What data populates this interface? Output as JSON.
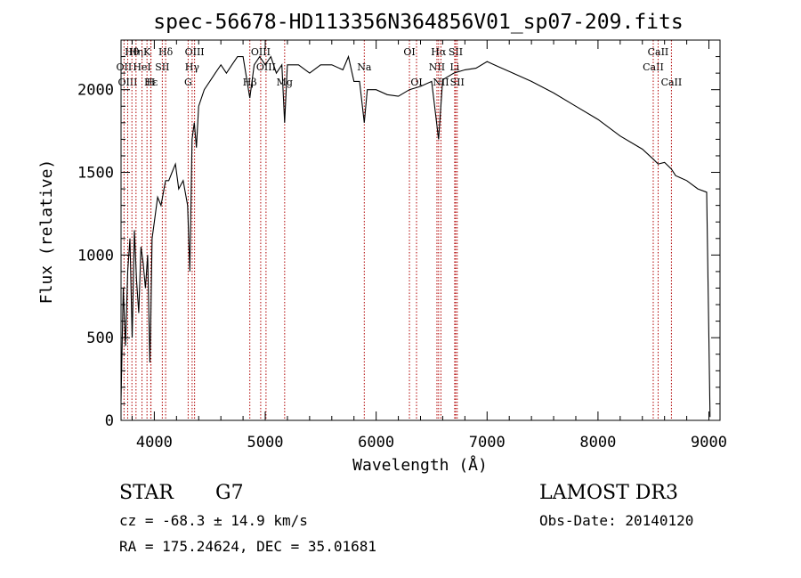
{
  "chart_data": {
    "type": "line",
    "title": "spec-56678-HD113356N364856V01_sp07-209.fits",
    "xlabel": "Wavelength (Å)",
    "ylabel": "Flux (relative)",
    "xlim": [
      3700,
      9100
    ],
    "ylim": [
      0,
      2300
    ],
    "x_ticks": [
      4000,
      5000,
      6000,
      7000,
      8000,
      9000
    ],
    "y_ticks": [
      0,
      500,
      1000,
      1500,
      2000
    ],
    "grid": false,
    "series": [
      {
        "x": [
          3700,
          3720,
          3740,
          3760,
          3780,
          3800,
          3820,
          3840,
          3860,
          3880,
          3900,
          3920,
          3940,
          3960,
          3968,
          3980,
          4000,
          4030,
          4060,
          4101,
          4130,
          4160,
          4190,
          4220,
          4260,
          4300,
          4320,
          4340,
          4360,
          4380,
          4400,
          4450,
          4500,
          4550,
          4600,
          4650,
          4700,
          4750,
          4800,
          4861,
          4900,
          4950,
          5000,
          5050,
          5100,
          5150,
          5175,
          5200,
          5300,
          5400,
          5500,
          5600,
          5700,
          5750,
          5800,
          5850,
          5893,
          5920,
          6000,
          6100,
          6200,
          6300,
          6400,
          6500,
          6563,
          6600,
          6650,
          6700,
          6800,
          6900,
          7000,
          7100,
          7200,
          7400,
          7600,
          7800,
          8000,
          8200,
          8400,
          8498,
          8542,
          8600,
          8662,
          8700,
          8800,
          8900,
          8980,
          9000,
          9010
        ],
        "y": [
          120,
          800,
          450,
          900,
          1100,
          500,
          1150,
          850,
          650,
          1050,
          950,
          800,
          1000,
          350,
          600,
          1100,
          1200,
          1350,
          1300,
          1450,
          1450,
          1500,
          1550,
          1400,
          1450,
          1300,
          900,
          1700,
          1800,
          1650,
          1900,
          2000,
          2050,
          2100,
          2150,
          2100,
          2150,
          2200,
          2200,
          1950,
          2150,
          2200,
          2150,
          2200,
          2100,
          2150,
          1800,
          2150,
          2150,
          2100,
          2150,
          2150,
          2120,
          2200,
          2050,
          2050,
          1800,
          2000,
          2000,
          1970,
          1960,
          2000,
          2020,
          2050,
          1700,
          2060,
          2080,
          2100,
          2120,
          2130,
          2170,
          2140,
          2110,
          2050,
          1980,
          1900,
          1820,
          1720,
          1640,
          1580,
          1550,
          1560,
          1520,
          1480,
          1450,
          1400,
          1380,
          500,
          20
        ]
      }
    ],
    "lines": [
      {
        "label": "OII",
        "x": 3727,
        "row": 1
      },
      {
        "label": "OIII",
        "x": 3760,
        "row": 2
      },
      {
        "label": "Hθ",
        "x": 3798,
        "row": 0
      },
      {
        "label": "Hη",
        "x": 3835,
        "row": 0
      },
      {
        "label": "HeI",
        "x": 3889,
        "row": 1
      },
      {
        "label": "K",
        "x": 3934,
        "row": 0
      },
      {
        "label": "Hε",
        "x": 3970,
        "row": 2
      },
      {
        "label": "H",
        "x": 3968,
        "row": 2
      },
      {
        "label": "SII",
        "x": 4072,
        "row": 1
      },
      {
        "label": "Hδ",
        "x": 4102,
        "row": 0
      },
      {
        "label": "G",
        "x": 4305,
        "row": 2
      },
      {
        "label": "OIII",
        "x": 4363,
        "row": 0
      },
      {
        "label": "Hγ",
        "x": 4341,
        "row": 1
      },
      {
        "label": "Hβ",
        "x": 4861,
        "row": 2
      },
      {
        "label": "OIII",
        "x": 4959,
        "row": 0
      },
      {
        "label": "OIII",
        "x": 5007,
        "row": 1
      },
      {
        "label": "Mg",
        "x": 5175,
        "row": 2
      },
      {
        "label": "Na",
        "x": 5893,
        "row": 1
      },
      {
        "label": "OI",
        "x": 6300,
        "row": 0
      },
      {
        "label": "OI",
        "x": 6364,
        "row": 2
      },
      {
        "label": "NII",
        "x": 6548,
        "row": 1
      },
      {
        "label": "Hα",
        "x": 6563,
        "row": 0
      },
      {
        "label": "NII",
        "x": 6584,
        "row": 2
      },
      {
        "label": "SII",
        "x": 6717,
        "row": 0
      },
      {
        "label": "Li",
        "x": 6708,
        "row": 1
      },
      {
        "label": "SII",
        "x": 6731,
        "row": 2
      },
      {
        "label": "CaII",
        "x": 8498,
        "row": 1
      },
      {
        "label": "CaII",
        "x": 8542,
        "row": 0
      },
      {
        "label": "CaII",
        "x": 8662,
        "row": 2
      }
    ]
  },
  "info": {
    "class_label": "STAR",
    "subclass": "G7",
    "survey": "LAMOST DR3",
    "cz": "cz = -68.3 ± 14.9 km/s",
    "obs_date": "Obs-Date: 20140120",
    "coords": "RA = 175.24624, DEC =  35.01681"
  }
}
